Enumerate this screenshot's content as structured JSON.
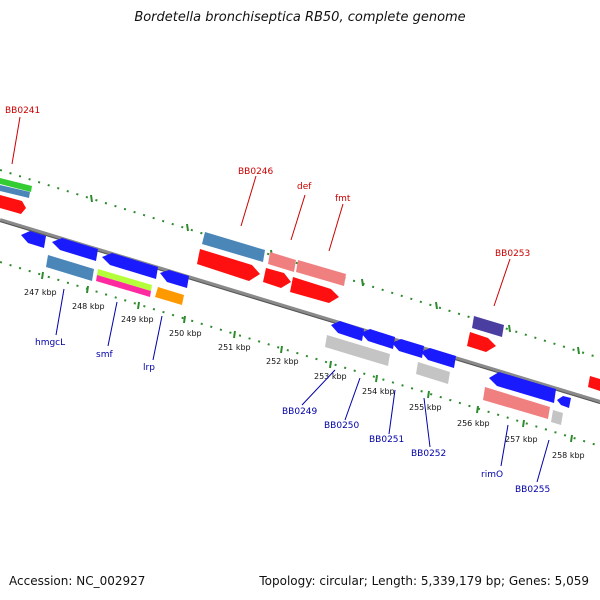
{
  "title": "Bordetella bronchiseptica RB50, complete genome",
  "footer": {
    "accession": "Accession: NC_002927",
    "topology": "Topology: circular; Length: 5,339,179 bp; Genes: 5,059"
  },
  "colors": {
    "backbone": "#888888",
    "tick_green": "#2e8b2e",
    "label_red": "#cc0000",
    "label_blue": "#0000aa",
    "forward_red": "#ff1010",
    "reverse_blue": "#1a1aff",
    "steel_blue": "#4a86b8",
    "salmon": "#f08080",
    "grey": "#c4c4c4",
    "orange": "#ff9900",
    "magenta": "#ff2aa0",
    "lime": "#b5ff3a",
    "indigo": "#4a3fa0",
    "green": "#33cc33"
  },
  "scale_labels": [
    "247 kbp",
    "248 kbp",
    "249 kbp",
    "250 kbp",
    "251 kbp",
    "252 kbp",
    "253 kbp",
    "254 kbp",
    "255 kbp",
    "256 kbp",
    "257 kbp",
    "258 kbp"
  ],
  "callouts_top": [
    "BB0241",
    "BB0246",
    "def",
    "fmt",
    "BB0253"
  ],
  "callouts_bottom": [
    "hmgcL",
    "smf",
    "lrp",
    "BB0249",
    "BB0250",
    "BB0251",
    "BB0252",
    "rimO",
    "BB0255"
  ]
}
